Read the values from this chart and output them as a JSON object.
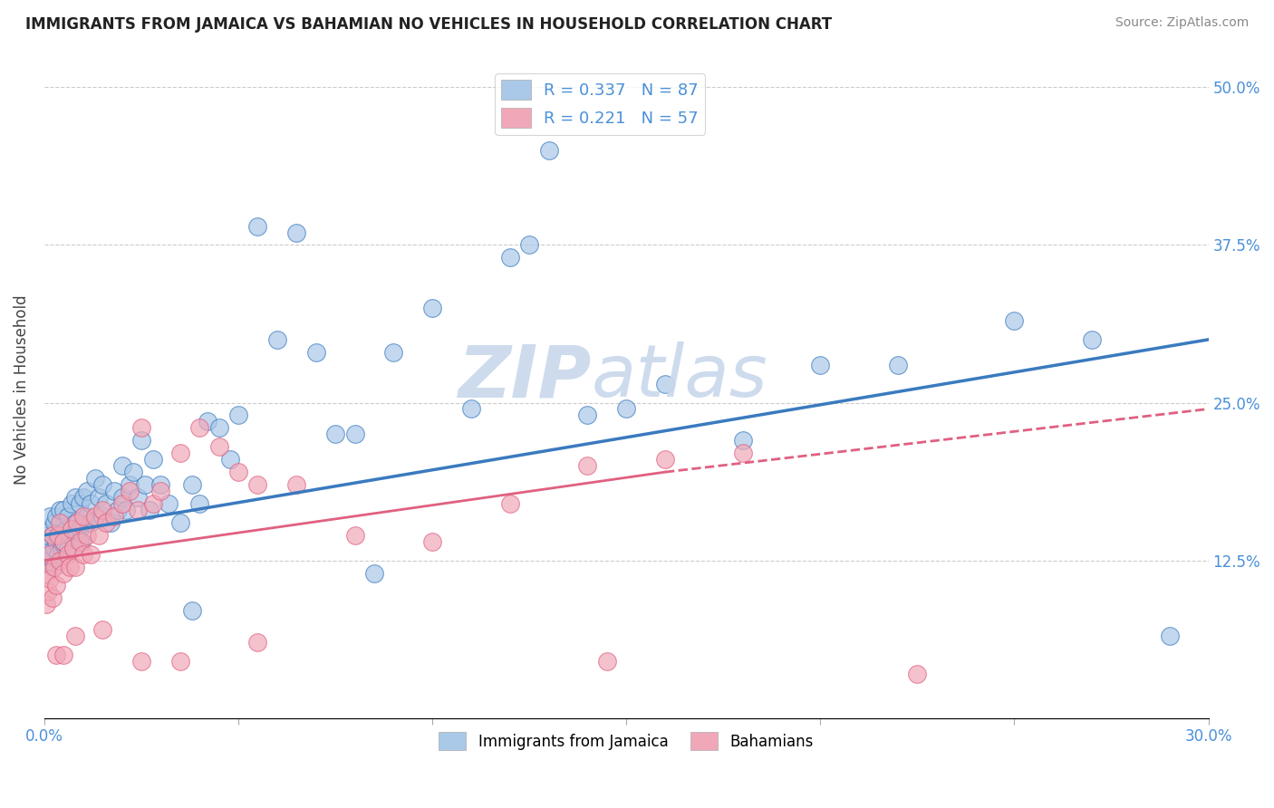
{
  "title": "IMMIGRANTS FROM JAMAICA VS BAHAMIAN NO VEHICLES IN HOUSEHOLD CORRELATION CHART",
  "source": "Source: ZipAtlas.com",
  "ylabel": "No Vehicles in Household",
  "xmin": 0.0,
  "xmax": 30.0,
  "ymin": 0.0,
  "ymax": 52.0,
  "yticks": [
    12.5,
    25.0,
    37.5,
    50.0
  ],
  "r_jamaica": 0.337,
  "n_jamaica": 87,
  "r_bahamian": 0.221,
  "n_bahamian": 57,
  "color_jamaica": "#aac8e8",
  "color_bahamian": "#f0a8b8",
  "color_line_jamaica": "#3a7abf",
  "color_line_bahamian": "#e06080",
  "color_title": "#222222",
  "color_axis_labels": "#4a90d9",
  "color_grid": "#cccccc",
  "color_watermark": "#c8d8ec",
  "legend_label_jamaica": "Immigrants from Jamaica",
  "legend_label_bahamian": "Bahamians",
  "jamaica_x": [
    0.05,
    0.08,
    0.1,
    0.12,
    0.15,
    0.15,
    0.2,
    0.2,
    0.25,
    0.25,
    0.3,
    0.3,
    0.35,
    0.4,
    0.4,
    0.45,
    0.5,
    0.5,
    0.55,
    0.6,
    0.6,
    0.65,
    0.7,
    0.7,
    0.75,
    0.8,
    0.8,
    0.85,
    0.9,
    0.9,
    0.95,
    1.0,
    1.0,
    1.1,
    1.1,
    1.2,
    1.2,
    1.3,
    1.4,
    1.5,
    1.5,
    1.6,
    1.7,
    1.8,
    1.9,
    2.0,
    2.0,
    2.1,
    2.2,
    2.3,
    2.4,
    2.5,
    2.6,
    2.7,
    2.8,
    3.0,
    3.2,
    3.5,
    3.8,
    4.0,
    4.2,
    4.5,
    4.8,
    5.0,
    5.5,
    6.0,
    7.0,
    8.0,
    9.0,
    10.0,
    11.0,
    12.0,
    13.0,
    14.0,
    15.0,
    16.0,
    18.0,
    20.0,
    22.0,
    25.0,
    27.0,
    29.0,
    3.8,
    6.5,
    7.5,
    8.5,
    12.5
  ],
  "jamaica_y": [
    13.5,
    14.5,
    12.5,
    15.0,
    13.0,
    16.0,
    12.0,
    14.5,
    13.5,
    15.5,
    14.0,
    16.0,
    13.0,
    14.5,
    16.5,
    13.5,
    14.0,
    16.5,
    15.0,
    13.5,
    16.0,
    14.5,
    15.0,
    17.0,
    13.5,
    15.5,
    17.5,
    14.5,
    15.0,
    17.0,
    14.0,
    15.5,
    17.5,
    16.0,
    18.0,
    15.5,
    17.0,
    19.0,
    17.5,
    16.0,
    18.5,
    17.0,
    15.5,
    18.0,
    16.5,
    17.5,
    20.0,
    16.5,
    18.5,
    19.5,
    17.5,
    22.0,
    18.5,
    16.5,
    20.5,
    18.5,
    17.0,
    15.5,
    18.5,
    17.0,
    23.5,
    23.0,
    20.5,
    24.0,
    39.0,
    30.0,
    29.0,
    22.5,
    29.0,
    32.5,
    24.5,
    36.5,
    45.0,
    24.0,
    24.5,
    26.5,
    22.0,
    28.0,
    28.0,
    31.5,
    30.0,
    6.5,
    8.5,
    38.5,
    22.5,
    11.5,
    37.5
  ],
  "bahamian_x": [
    0.05,
    0.08,
    0.1,
    0.12,
    0.15,
    0.2,
    0.2,
    0.25,
    0.3,
    0.35,
    0.4,
    0.4,
    0.5,
    0.5,
    0.6,
    0.65,
    0.7,
    0.75,
    0.8,
    0.85,
    0.9,
    1.0,
    1.0,
    1.1,
    1.2,
    1.3,
    1.4,
    1.5,
    1.6,
    1.8,
    2.0,
    2.2,
    2.4,
    2.5,
    2.8,
    3.0,
    3.5,
    4.0,
    4.5,
    5.0,
    5.5,
    6.5,
    8.0,
    10.0,
    12.0,
    14.0,
    16.0,
    18.0,
    0.3,
    0.5,
    0.8,
    1.5,
    2.5,
    3.5,
    5.5,
    14.5,
    22.5
  ],
  "bahamian_y": [
    9.0,
    11.5,
    10.0,
    13.0,
    11.0,
    9.5,
    14.5,
    12.0,
    10.5,
    14.5,
    12.5,
    15.5,
    11.5,
    14.0,
    13.0,
    12.0,
    15.0,
    13.5,
    12.0,
    15.5,
    14.0,
    13.0,
    16.0,
    14.5,
    13.0,
    16.0,
    14.5,
    16.5,
    15.5,
    16.0,
    17.0,
    18.0,
    16.5,
    23.0,
    17.0,
    18.0,
    21.0,
    23.0,
    21.5,
    19.5,
    18.5,
    18.5,
    14.5,
    14.0,
    17.0,
    20.0,
    20.5,
    21.0,
    5.0,
    5.0,
    6.5,
    7.0,
    4.5,
    4.5,
    6.0,
    4.5,
    3.5
  ],
  "jamaica_trend_x0": 0.0,
  "jamaica_trend_y0": 14.5,
  "jamaica_trend_x1": 30.0,
  "jamaica_trend_y1": 30.0,
  "bahamian_trend_x0": 0.0,
  "bahamian_trend_y0": 12.5,
  "bahamian_trend_x1": 16.0,
  "bahamian_trend_y1": 19.5,
  "bahamian_dash_x0": 16.0,
  "bahamian_dash_y0": 19.5,
  "bahamian_dash_x1": 30.0,
  "bahamian_dash_y1": 24.5
}
